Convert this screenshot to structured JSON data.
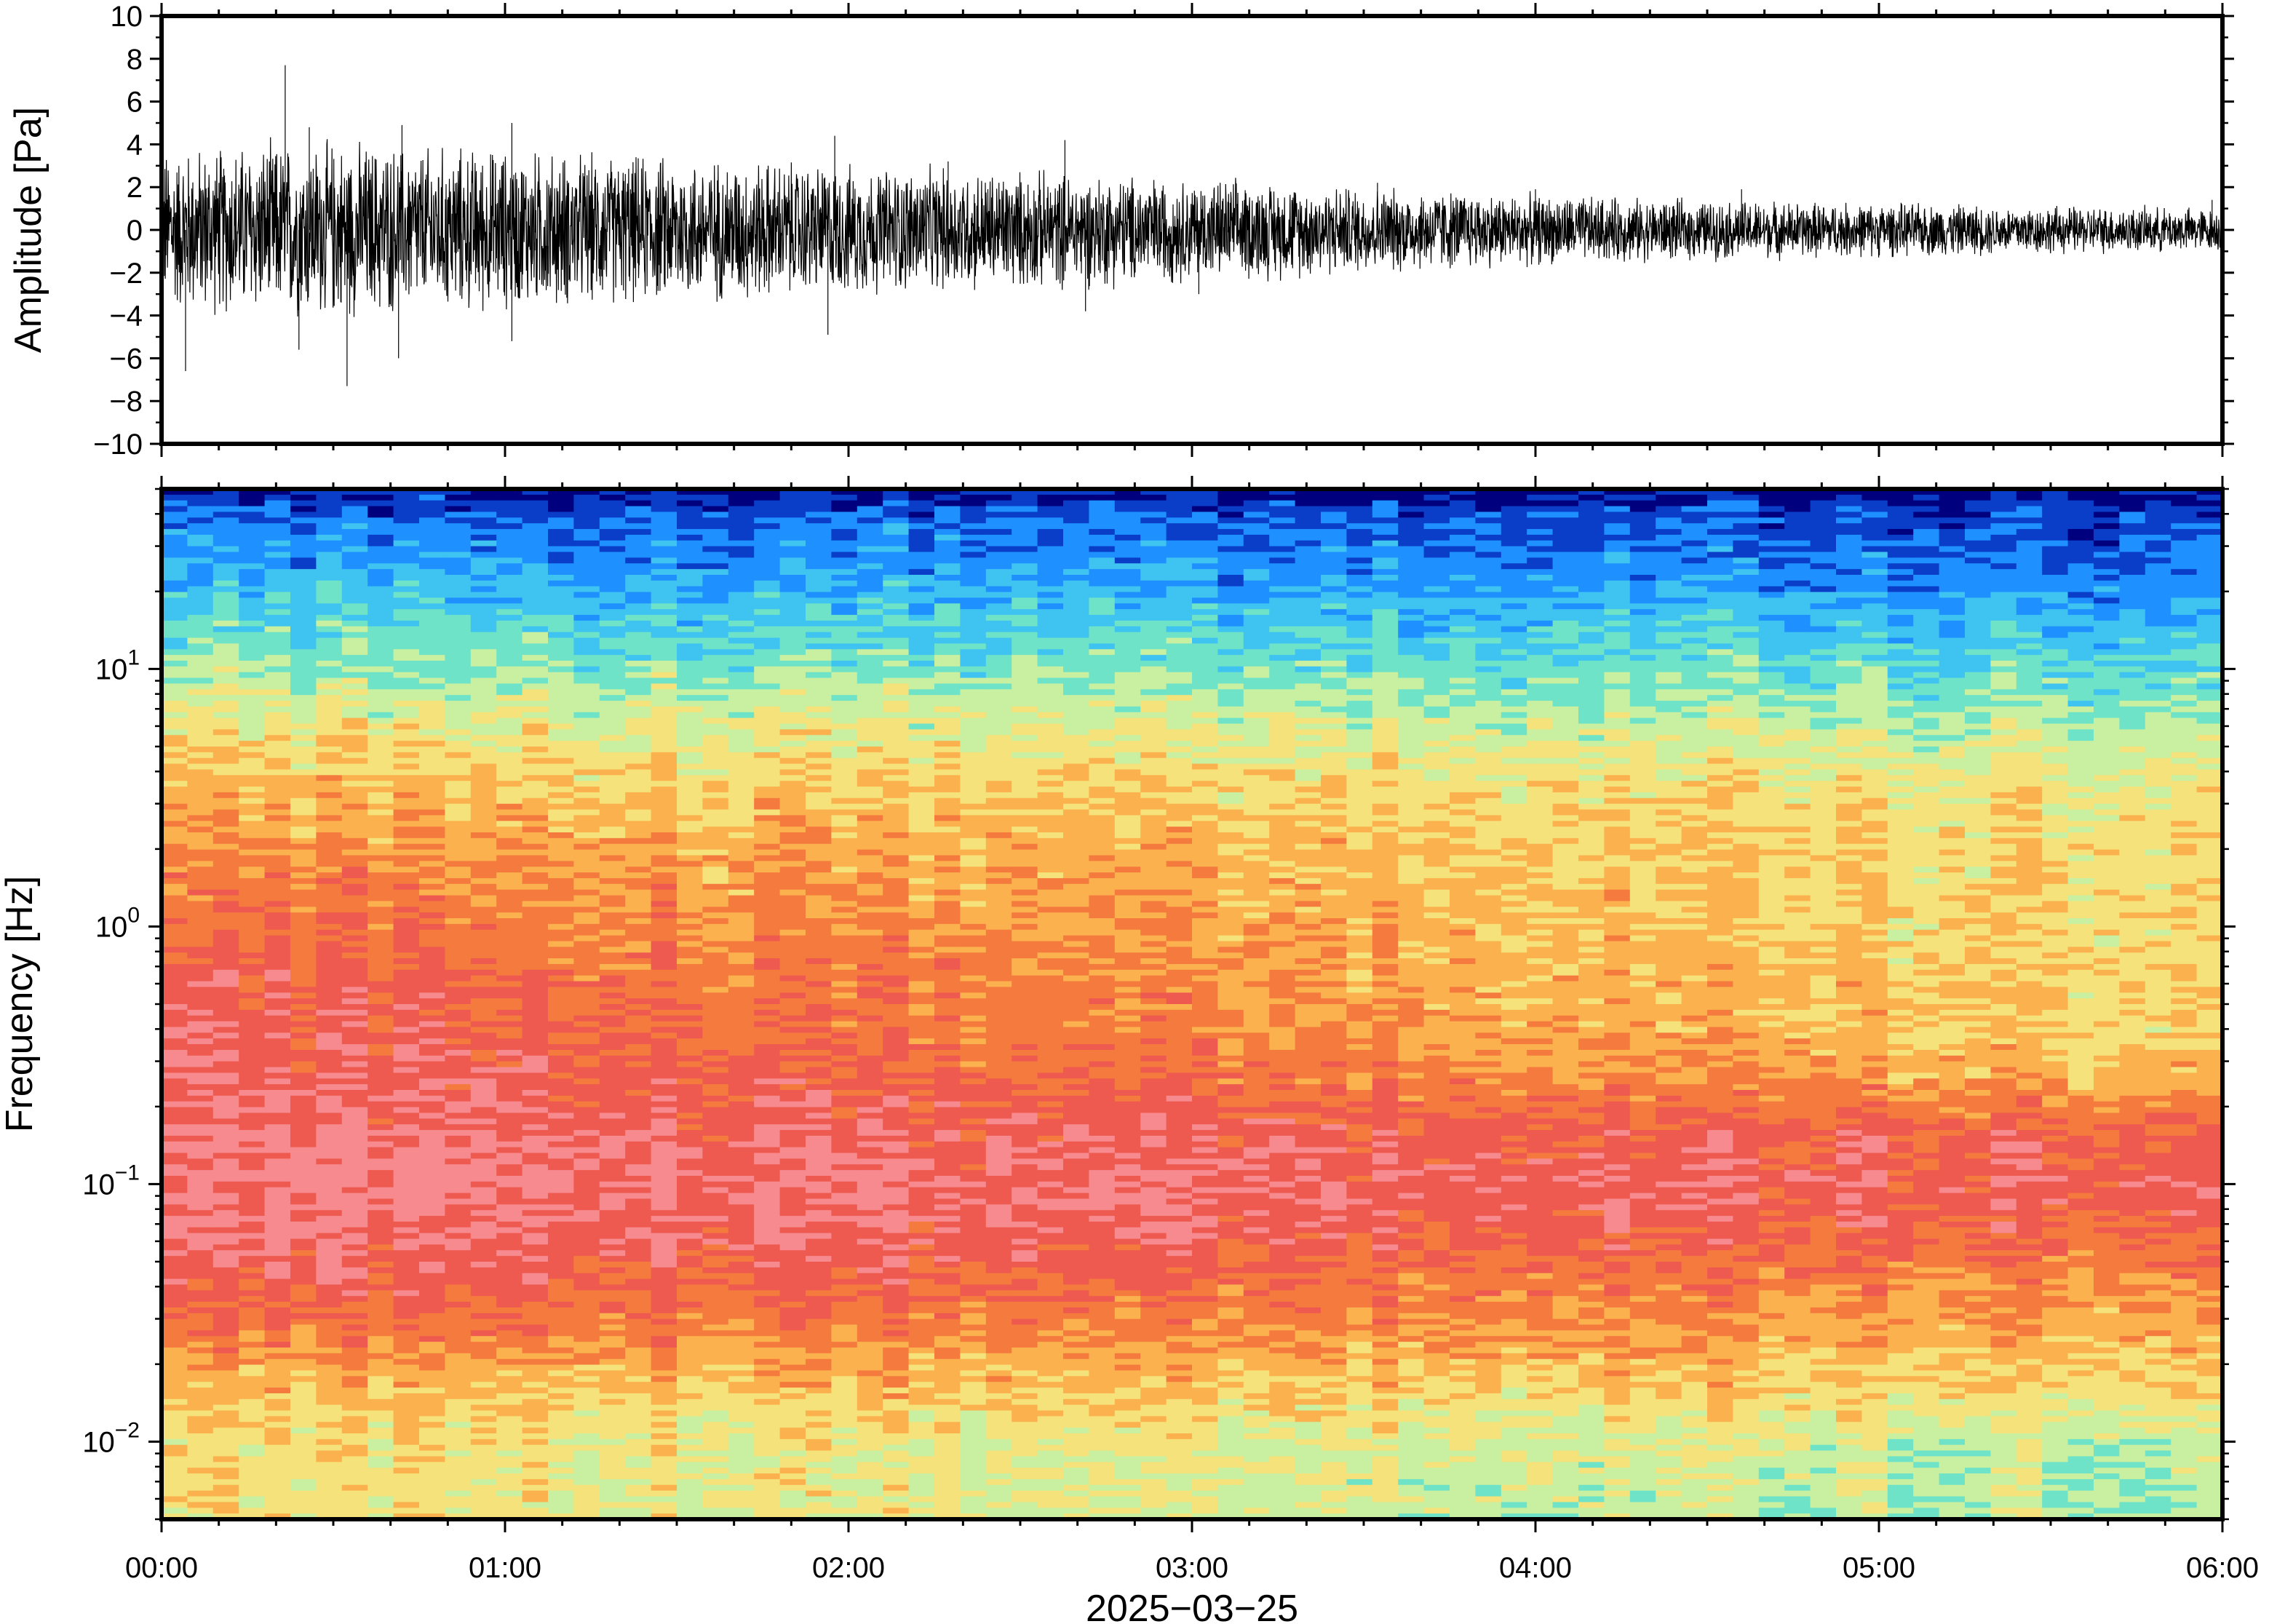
{
  "chart_data": [
    {
      "type": "line",
      "panel": "waveform",
      "ylabel": "Amplitude [Pa]",
      "ylim": [
        -10,
        10
      ],
      "yticks": [
        10,
        8,
        6,
        4,
        2,
        0,
        -2,
        -4,
        -6,
        -8,
        -10
      ],
      "ytick_labels": [
        "10",
        "8",
        "6",
        "4",
        "2",
        "0",
        "−2",
        "−4",
        "−6",
        "−8",
        "−10"
      ],
      "xlim": [
        "00:00",
        "06:00"
      ],
      "line_color": "#000000",
      "envelope": {
        "time_hours": [
          0.0,
          0.25,
          0.5,
          0.75,
          1.0,
          1.25,
          1.5,
          1.75,
          2.0,
          2.25,
          2.5,
          2.75,
          3.0,
          3.25,
          3.5,
          3.75,
          4.0,
          4.25,
          4.5,
          4.75,
          5.0,
          5.25,
          5.5,
          5.75,
          6.0
        ],
        "amplitude_pa": [
          3.0,
          3.2,
          3.3,
          3.1,
          3.0,
          2.8,
          2.7,
          2.6,
          2.4,
          2.3,
          2.2,
          2.1,
          1.9,
          1.8,
          1.6,
          1.5,
          1.3,
          1.2,
          1.1,
          1.05,
          1.0,
          0.95,
          0.9,
          0.85,
          0.8
        ]
      },
      "peaks": [
        {
          "time_hours": 0.07,
          "value": -6.6
        },
        {
          "time_hours": 0.36,
          "value": 7.7
        },
        {
          "time_hours": 0.4,
          "value": -5.6
        },
        {
          "time_hours": 0.43,
          "value": 4.8
        },
        {
          "time_hours": 0.54,
          "value": -7.3
        },
        {
          "time_hours": 0.7,
          "value": 4.9
        },
        {
          "time_hours": 0.69,
          "value": -6.0
        },
        {
          "time_hours": 1.02,
          "value": 5.0
        },
        {
          "time_hours": 1.02,
          "value": -5.2
        },
        {
          "time_hours": 1.96,
          "value": 4.4
        },
        {
          "time_hours": 1.94,
          "value": -4.9
        },
        {
          "time_hours": 2.29,
          "value": 3.2
        },
        {
          "time_hours": 2.63,
          "value": 4.2
        },
        {
          "time_hours": 2.69,
          "value": -3.8
        },
        {
          "time_hours": 3.02,
          "value": -3.0
        },
        {
          "time_hours": 3.54,
          "value": 2.2
        },
        {
          "time_hours": 4.0,
          "value": 1.9
        },
        {
          "time_hours": 4.6,
          "value": 1.9
        },
        {
          "time_hours": 5.97,
          "value": 1.4
        }
      ]
    },
    {
      "type": "heatmap",
      "panel": "spectrogram",
      "ylabel": "Frequency [Hz]",
      "yscale": "log",
      "ylim_hz": [
        0.005,
        50
      ],
      "yticks": [
        {
          "value": 10,
          "base": "10",
          "exp": "1"
        },
        {
          "value": 1,
          "base": "10",
          "exp": "0"
        },
        {
          "value": 0.1,
          "base": "10",
          "exp": "−1"
        },
        {
          "value": 0.01,
          "base": "10",
          "exp": "−2"
        }
      ],
      "xlabel": "2025−03−25",
      "xticks": [
        "00:00",
        "01:00",
        "02:00",
        "03:00",
        "04:00",
        "05:00",
        "06:00"
      ],
      "xlim_hours": [
        0,
        6
      ],
      "colormap": [
        "#00007f",
        "#0a3ec8",
        "#1e90ff",
        "#3fc3f0",
        "#6fe3c8",
        "#c8f0a0",
        "#f5e27a",
        "#fbb14e",
        "#f57a3e",
        "#ee5a4f",
        "#f78a8e"
      ],
      "level_description": "colormap index 0-10 (0 = lowest power, 10 = highest)",
      "level_profile": {
        "log10_freq": [
          1.7,
          1.6,
          1.4,
          1.2,
          1.0,
          0.8,
          0.6,
          0.4,
          0.2,
          0.0,
          -0.2,
          -0.4,
          -0.6,
          -0.8,
          -1.0,
          -1.2,
          -1.4,
          -1.6,
          -1.8,
          -2.0,
          -2.3
        ],
        "level_at_start": [
          0.2,
          1.6,
          2.5,
          3.6,
          4.6,
          5.8,
          6.6,
          7.3,
          7.9,
          8.4,
          9.0,
          9.3,
          9.5,
          9.7,
          9.8,
          9.8,
          9.0,
          8.0,
          6.8,
          6.2,
          6.0
        ],
        "level_at_end": [
          0.1,
          1.0,
          1.6,
          2.7,
          3.7,
          4.7,
          5.6,
          6.1,
          6.1,
          6.1,
          6.1,
          6.2,
          7.1,
          8.6,
          9.2,
          8.5,
          7.6,
          7.0,
          6.3,
          5.0,
          4.6
        ]
      },
      "n_time_bins": 80,
      "n_freq_bins": 180
    }
  ]
}
